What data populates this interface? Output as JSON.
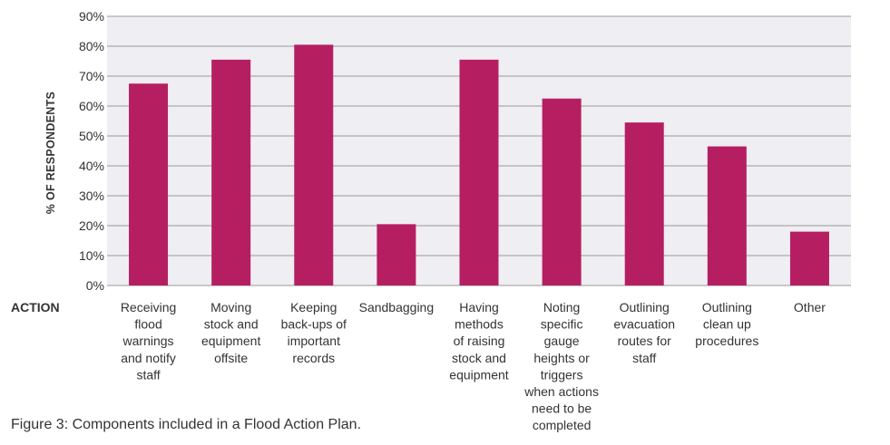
{
  "chart_data": {
    "type": "bar",
    "ylabel": "% OF RESPONDENTS",
    "xlabel": "ACTION",
    "caption": "Figure 3: Components included in a Flood Action Plan.",
    "ylim": [
      0,
      90
    ],
    "ytick_step": 10,
    "ytick_suffix": "%",
    "grid": true,
    "bar_color": "#b51f62",
    "plot_bg": "#efeef2",
    "grid_color": "#9a9a9a",
    "categories": [
      "Receiving flood warnings and notify staff",
      "Moving stock and equipment offsite",
      "Keeping back-ups of important records",
      "Sandbagging",
      "Having methods of raising stock and equipment",
      "Noting specific gauge heights or triggers when actions need to be completed",
      "Outlining evacuation routes for staff",
      "Outlining clean up procedures",
      "Other"
    ],
    "category_lines": [
      [
        "Receiving",
        "flood",
        "warnings",
        "and notify",
        "staff"
      ],
      [
        "Moving",
        "stock and",
        "equipment",
        "offsite"
      ],
      [
        "Keeping",
        "back-ups of",
        "important",
        "records"
      ],
      [
        "Sandbagging"
      ],
      [
        "Having",
        "methods",
        "of raising",
        "stock and",
        "equipment"
      ],
      [
        "Noting",
        "specific",
        "gauge",
        "heights or",
        "triggers",
        "when actions",
        "need to be",
        "completed"
      ],
      [
        "Outlining",
        "evacuation",
        "routes for",
        "staff"
      ],
      [
        "Outlining",
        "clean up",
        "procedures"
      ],
      [
        "Other"
      ]
    ],
    "values": [
      67.5,
      75.5,
      80.5,
      20.5,
      75.5,
      62.5,
      54.5,
      46.5,
      18
    ]
  }
}
